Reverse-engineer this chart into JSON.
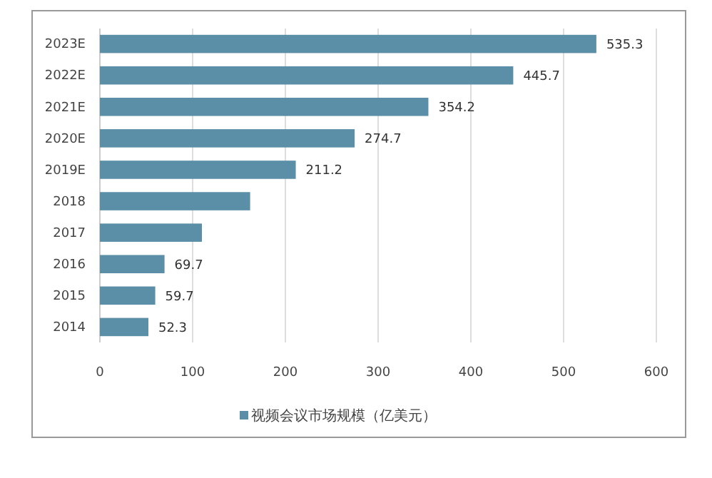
{
  "chart_data": {
    "type": "bar",
    "orientation": "horizontal",
    "categories": [
      "2023E",
      "2022E",
      "2021E",
      "2020E",
      "2019E",
      "2018",
      "2017",
      "2016",
      "2015",
      "2014"
    ],
    "series": [
      {
        "name": "视频会议市场规模（亿美元）",
        "color": "#5b8fa8",
        "values": [
          535.3,
          445.7,
          354.2,
          274.7,
          211.2,
          162,
          110,
          69.7,
          59.7,
          52.3
        ],
        "value_labels": [
          "535.3",
          "445.7",
          "354.2",
          "274.7",
          "211.2",
          null,
          null,
          "69.7",
          "59.7",
          "52.3"
        ]
      }
    ],
    "xlim": [
      0,
      600
    ],
    "xticks": [
      0,
      100,
      200,
      300,
      400,
      500,
      600
    ],
    "grid": "x",
    "legend": "bottom"
  }
}
